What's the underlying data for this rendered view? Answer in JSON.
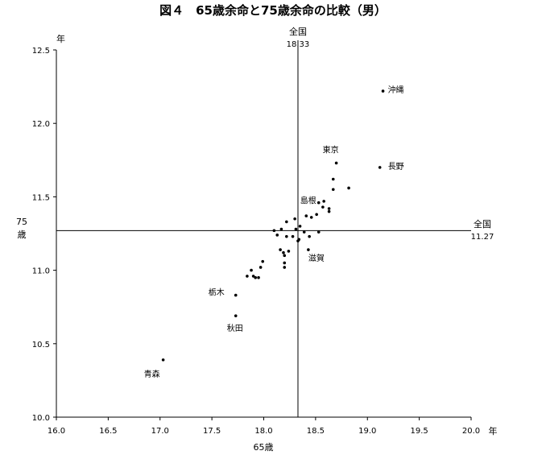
{
  "chart_data": {
    "type": "scatter",
    "title": "図４　65歳余命と75歳余命の比較（男）",
    "xlabel": "65歳",
    "x_unit": "年",
    "ylabel_lines": [
      "75",
      "歳"
    ],
    "y_unit": "年",
    "xlim": [
      16.0,
      20.0
    ],
    "ylim": [
      10.0,
      12.5
    ],
    "x_ticks": [
      16.0,
      16.5,
      17.0,
      17.5,
      18.0,
      18.5,
      19.0,
      19.5,
      20.0
    ],
    "x_tick_labels": [
      "16.0",
      "16.5",
      "17.0",
      "17.5",
      "18.0",
      "18.5",
      "19.0",
      "19.5",
      "20.0"
    ],
    "y_ticks": [
      10.0,
      10.5,
      11.0,
      11.5,
      12.0,
      12.5
    ],
    "y_tick_labels": [
      "10.0",
      "10.5",
      "11.0",
      "11.5",
      "12.0",
      "12.5"
    ],
    "grid": false,
    "legend": "none",
    "reference_lines": {
      "vertical": {
        "label": "全国",
        "value_label": "18.33",
        "x": 18.33
      },
      "horizontal": {
        "label": "全国",
        "value_label": "11.27",
        "y": 11.27
      }
    },
    "labeled_points": [
      {
        "label": "沖縄",
        "x": 19.15,
        "y": 12.22
      },
      {
        "label": "長野",
        "x": 19.12,
        "y": 11.7
      },
      {
        "label": "東京",
        "x": 18.7,
        "y": 11.73
      },
      {
        "label": "島根",
        "x": 18.53,
        "y": 11.46
      },
      {
        "label": "滋賀",
        "x": 18.43,
        "y": 11.14
      },
      {
        "label": "栃木",
        "x": 17.73,
        "y": 10.83
      },
      {
        "label": "秋田",
        "x": 17.73,
        "y": 10.69
      },
      {
        "label": "青森",
        "x": 17.03,
        "y": 10.39
      }
    ],
    "points": [
      {
        "x": 18.67,
        "y": 11.62
      },
      {
        "x": 18.82,
        "y": 11.56
      },
      {
        "x": 18.67,
        "y": 11.55
      },
      {
        "x": 18.58,
        "y": 11.47
      },
      {
        "x": 18.57,
        "y": 11.43
      },
      {
        "x": 18.63,
        "y": 11.42
      },
      {
        "x": 18.63,
        "y": 11.4
      },
      {
        "x": 18.41,
        "y": 11.37
      },
      {
        "x": 18.46,
        "y": 11.36
      },
      {
        "x": 18.51,
        "y": 11.38
      },
      {
        "x": 18.3,
        "y": 11.35
      },
      {
        "x": 18.22,
        "y": 11.33
      },
      {
        "x": 18.35,
        "y": 11.3
      },
      {
        "x": 18.17,
        "y": 11.28
      },
      {
        "x": 18.1,
        "y": 11.27
      },
      {
        "x": 18.31,
        "y": 11.28
      },
      {
        "x": 18.39,
        "y": 11.26
      },
      {
        "x": 18.53,
        "y": 11.26
      },
      {
        "x": 18.13,
        "y": 11.24
      },
      {
        "x": 18.22,
        "y": 11.23
      },
      {
        "x": 18.28,
        "y": 11.23
      },
      {
        "x": 18.34,
        "y": 11.21
      },
      {
        "x": 18.44,
        "y": 11.23
      },
      {
        "x": 18.33,
        "y": 11.2
      },
      {
        "x": 18.16,
        "y": 11.14
      },
      {
        "x": 18.19,
        "y": 11.12
      },
      {
        "x": 18.24,
        "y": 11.13
      },
      {
        "x": 18.2,
        "y": 11.1
      },
      {
        "x": 18.2,
        "y": 11.05
      },
      {
        "x": 18.2,
        "y": 11.02
      },
      {
        "x": 17.99,
        "y": 11.06
      },
      {
        "x": 17.97,
        "y": 11.02
      },
      {
        "x": 17.88,
        "y": 11.0
      },
      {
        "x": 17.9,
        "y": 10.96
      },
      {
        "x": 17.92,
        "y": 10.95
      },
      {
        "x": 17.95,
        "y": 10.95
      },
      {
        "x": 17.84,
        "y": 10.96
      }
    ]
  }
}
